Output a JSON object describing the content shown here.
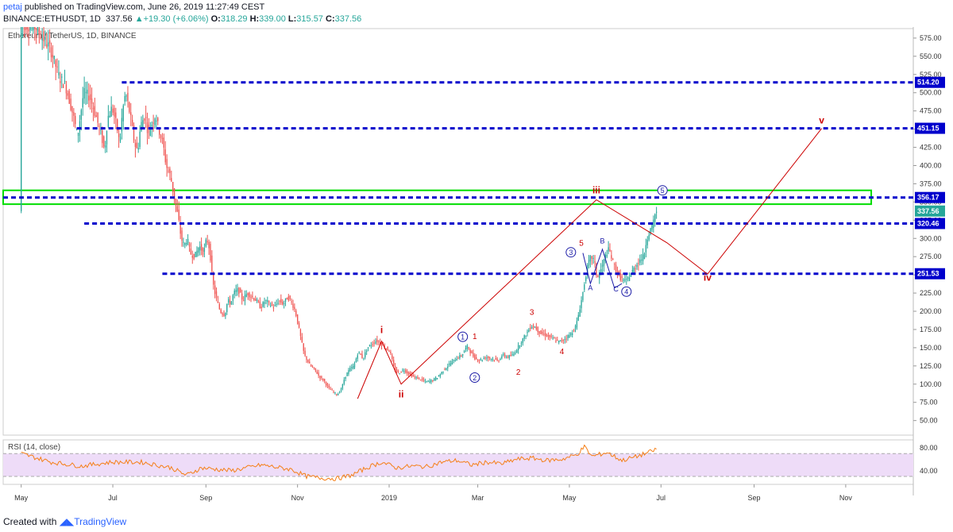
{
  "header": {
    "author": "petaj",
    "published": "published on TradingView.com, June 26, 2019 11:27:49 CEST",
    "symbol": "BINANCE:ETHUSDT, 1D",
    "last": "337.56",
    "change": "+19.30 (+6.06%)",
    "o_label": "O:",
    "o": "318.29",
    "h_label": "H:",
    "h": "339.00",
    "l_label": "L:",
    "l": "315.57",
    "c_label": "C:",
    "c": "337.56"
  },
  "footer": {
    "created_with": "Created with",
    "brand": "TradingView"
  },
  "colors": {
    "level": "#0000cc",
    "zone": "#00dd00",
    "wave_red": "#cc0000",
    "wave_blue": "#1a1aa6",
    "rsi_band": "#eedcf8",
    "rsi_line": "#f57f17",
    "up": "#26a69a",
    "down": "#ef5350"
  },
  "chart_data": {
    "type": "candlestick",
    "title": "Ethereum / TetherUS, 1D, BINANCE",
    "y_ticks": [
      50,
      75,
      100,
      125,
      150,
      175,
      200,
      225,
      250,
      275,
      300,
      325,
      350,
      375,
      400,
      425,
      450,
      475,
      500,
      525,
      550,
      575
    ],
    "ylim": [
      30,
      588
    ],
    "x_ticks": [
      "May",
      "Jul",
      "Sep",
      "Nov",
      "2019",
      "Mar",
      "May",
      "Jul",
      "Sep",
      "Nov"
    ],
    "x_tick_days": [
      0,
      61,
      123,
      184,
      245,
      304,
      365,
      426,
      488,
      549
    ],
    "xlim_days": [
      -12,
      594
    ],
    "x_origin": "2018-05-01",
    "price_path": [
      [
        0,
        595
      ],
      [
        10,
        590
      ],
      [
        20,
        560
      ],
      [
        26,
        520
      ],
      [
        30,
        510
      ],
      [
        35,
        470
      ],
      [
        38,
        440
      ],
      [
        42,
        500
      ],
      [
        46,
        495
      ],
      [
        50,
        470
      ],
      [
        54,
        440
      ],
      [
        56,
        420
      ],
      [
        58,
        465
      ],
      [
        61,
        480
      ],
      [
        64,
        455
      ],
      [
        66,
        430
      ],
      [
        68,
        475
      ],
      [
        70,
        500
      ],
      [
        73,
        470
      ],
      [
        76,
        430
      ],
      [
        78,
        420
      ],
      [
        80,
        455
      ],
      [
        83,
        470
      ],
      [
        85,
        445
      ],
      [
        88,
        460
      ],
      [
        90,
        470
      ],
      [
        92,
        450
      ],
      [
        95,
        430
      ],
      [
        97,
        400
      ],
      [
        100,
        385
      ],
      [
        102,
        360
      ],
      [
        105,
        330
      ],
      [
        107,
        300
      ],
      [
        109,
        290
      ],
      [
        111,
        300
      ],
      [
        113,
        280
      ],
      [
        116,
        275
      ],
      [
        119,
        290
      ],
      [
        122,
        280
      ],
      [
        124,
        300
      ],
      [
        126,
        285
      ],
      [
        128,
        240
      ],
      [
        130,
        220
      ],
      [
        133,
        200
      ],
      [
        136,
        195
      ],
      [
        138,
        215
      ],
      [
        140,
        210
      ],
      [
        142,
        225
      ],
      [
        145,
        230
      ],
      [
        148,
        215
      ],
      [
        151,
        225
      ],
      [
        154,
        220
      ],
      [
        157,
        215
      ],
      [
        160,
        205
      ],
      [
        163,
        215
      ],
      [
        166,
        210
      ],
      [
        169,
        205
      ],
      [
        172,
        215
      ],
      [
        175,
        210
      ],
      [
        178,
        220
      ],
      [
        181,
        210
      ],
      [
        183,
        200
      ],
      [
        186,
        170
      ],
      [
        189,
        140
      ],
      [
        193,
        125
      ],
      [
        196,
        120
      ],
      [
        199,
        110
      ],
      [
        202,
        105
      ],
      [
        205,
        95
      ],
      [
        208,
        90
      ],
      [
        211,
        85
      ],
      [
        214,
        95
      ],
      [
        216,
        110
      ],
      [
        219,
        120
      ],
      [
        222,
        125
      ],
      [
        225,
        145
      ],
      [
        228,
        135
      ],
      [
        231,
        150
      ],
      [
        234,
        155
      ],
      [
        237,
        160
      ],
      [
        240,
        155
      ],
      [
        243,
        150
      ],
      [
        246,
        145
      ],
      [
        249,
        120
      ],
      [
        252,
        115
      ],
      [
        255,
        120
      ],
      [
        258,
        115
      ],
      [
        262,
        110
      ],
      [
        266,
        107
      ],
      [
        270,
        103
      ],
      [
        274,
        105
      ],
      [
        278,
        110
      ],
      [
        282,
        120
      ],
      [
        286,
        128
      ],
      [
        290,
        135
      ],
      [
        294,
        140
      ],
      [
        296,
        148
      ],
      [
        298,
        152
      ],
      [
        300,
        142
      ],
      [
        303,
        135
      ],
      [
        306,
        133
      ],
      [
        310,
        137
      ],
      [
        314,
        135
      ],
      [
        318,
        132
      ],
      [
        321,
        140
      ],
      [
        324,
        137
      ],
      [
        328,
        140
      ],
      [
        331,
        150
      ],
      [
        334,
        160
      ],
      [
        337,
        170
      ],
      [
        340,
        180
      ],
      [
        343,
        178
      ],
      [
        346,
        170
      ],
      [
        349,
        168
      ],
      [
        352,
        165
      ],
      [
        355,
        162
      ],
      [
        358,
        158
      ],
      [
        361,
        160
      ],
      [
        364,
        165
      ],
      [
        367,
        170
      ],
      [
        370,
        180
      ],
      [
        372,
        200
      ],
      [
        374,
        220
      ],
      [
        376,
        245
      ],
      [
        378,
        265
      ],
      [
        380,
        275
      ],
      [
        382,
        270
      ],
      [
        384,
        245
      ],
      [
        386,
        255
      ],
      [
        388,
        265
      ],
      [
        390,
        280
      ],
      [
        392,
        285
      ],
      [
        394,
        270
      ],
      [
        396,
        260
      ],
      [
        398,
        250
      ],
      [
        400,
        245
      ],
      [
        403,
        240
      ],
      [
        406,
        250
      ],
      [
        409,
        260
      ],
      [
        412,
        270
      ],
      [
        415,
        275
      ],
      [
        417,
        300
      ],
      [
        419,
        310
      ],
      [
        421,
        318
      ],
      [
        423,
        337.56
      ]
    ],
    "rsi_values": [
      [
        0,
        70
      ],
      [
        20,
        55
      ],
      [
        40,
        48
      ],
      [
        60,
        55
      ],
      [
        80,
        55
      ],
      [
        100,
        45
      ],
      [
        110,
        32
      ],
      [
        120,
        45
      ],
      [
        140,
        40
      ],
      [
        160,
        50
      ],
      [
        180,
        42
      ],
      [
        190,
        30
      ],
      [
        200,
        27
      ],
      [
        210,
        26
      ],
      [
        220,
        32
      ],
      [
        230,
        45
      ],
      [
        240,
        55
      ],
      [
        250,
        45
      ],
      [
        260,
        48
      ],
      [
        270,
        47
      ],
      [
        280,
        55
      ],
      [
        290,
        58
      ],
      [
        300,
        50
      ],
      [
        310,
        55
      ],
      [
        320,
        52
      ],
      [
        330,
        60
      ],
      [
        340,
        62
      ],
      [
        350,
        58
      ],
      [
        360,
        60
      ],
      [
        370,
        68
      ],
      [
        375,
        82
      ],
      [
        380,
        65
      ],
      [
        390,
        72
      ],
      [
        400,
        58
      ],
      [
        410,
        65
      ],
      [
        420,
        74
      ],
      [
        423,
        78
      ]
    ],
    "rsi_ticks": [
      40,
      80
    ],
    "rsi_band": [
      30,
      70
    ],
    "rsi_ylim": [
      16,
      94
    ],
    "levels": [
      {
        "value": 514.2,
        "label": "514.20",
        "from_day": 67
      },
      {
        "value": 451.15,
        "label": "451.15",
        "from_day": 37
      },
      {
        "value": 356.17,
        "label": "356.17",
        "from_day": -12
      },
      {
        "value": 320.46,
        "label": "320.46",
        "from_day": 42
      },
      {
        "value": 251.53,
        "label": "251.53",
        "from_day": 94
      }
    ],
    "current_price_label": "337.56",
    "zone": {
      "low": 347,
      "high": 366,
      "from_day": -12,
      "to_day": 566
    },
    "projection": [
      [
        224,
        80
      ],
      [
        240,
        159
      ],
      [
        253,
        100
      ],
      [
        383,
        353
      ],
      [
        430,
        294
      ],
      [
        457,
        251
      ],
      [
        533,
        451
      ]
    ],
    "red_labels": [
      {
        "text": "i",
        "day": 240,
        "price": 170
      },
      {
        "text": "ii",
        "day": 253,
        "price": 82
      },
      {
        "text": "iii",
        "day": 383,
        "price": 362
      },
      {
        "text": "iv",
        "day": 457,
        "price": 242
      },
      {
        "text": "v",
        "day": 533,
        "price": 458
      },
      {
        "text": "1",
        "day": 302,
        "price": 162
      },
      {
        "text": "2",
        "day": 331,
        "price": 113
      },
      {
        "text": "3",
        "day": 340,
        "price": 195
      },
      {
        "text": "4",
        "day": 360,
        "price": 141
      },
      {
        "text": "5",
        "day": 373,
        "price": 290
      }
    ],
    "circle_labels": [
      {
        "text": "1",
        "day": 294,
        "price": 165
      },
      {
        "text": "2",
        "day": 302,
        "price": 109
      },
      {
        "text": "3",
        "day": 366,
        "price": 281
      },
      {
        "text": "4",
        "day": 403,
        "price": 227
      },
      {
        "text": "5",
        "day": 427,
        "price": 366
      }
    ],
    "blue_labels": [
      {
        "text": "A",
        "day": 379,
        "price": 229
      },
      {
        "text": "B",
        "day": 387,
        "price": 293
      },
      {
        "text": "C",
        "day": 396,
        "price": 227
      }
    ],
    "corrective": [
      [
        374,
        280
      ],
      [
        379,
        238
      ],
      [
        387,
        285
      ],
      [
        395,
        232
      ],
      [
        400,
        238
      ]
    ],
    "rsi_label": "RSI (14, close)"
  }
}
